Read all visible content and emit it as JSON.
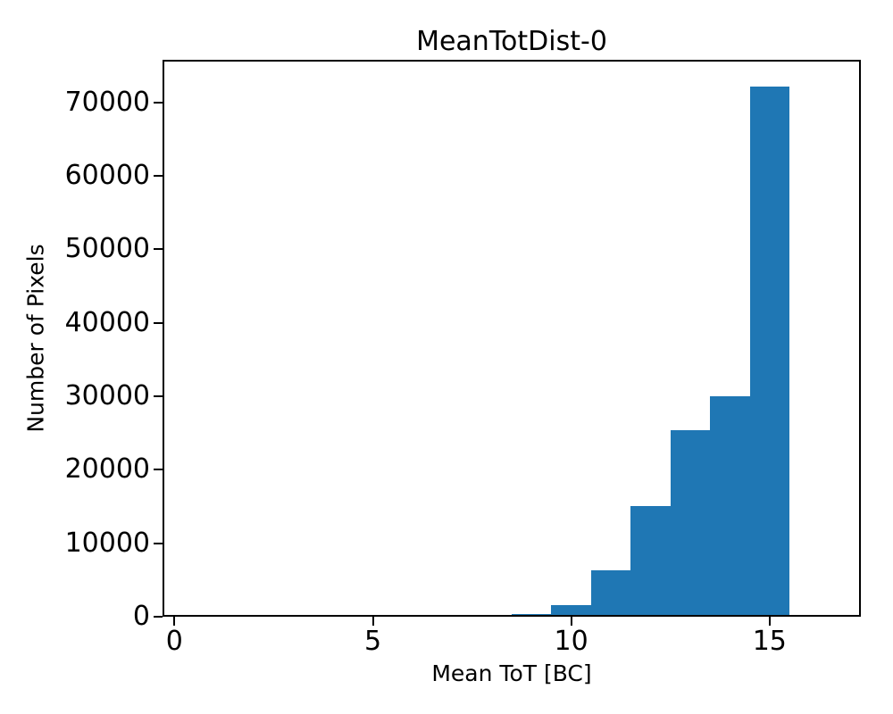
{
  "figure": {
    "title": "MeanTotDist-0",
    "xlabel": "Mean ToT [BC]",
    "ylabel": "Number of Pixels"
  },
  "colors": {
    "bar": "#1f77b4",
    "text": "#000000",
    "spine": "#000000",
    "background": "#ffffff"
  },
  "chart_data": {
    "type": "bar",
    "subtype": "histogram",
    "title": "MeanTotDist-0",
    "xlabel": "Mean ToT [BC]",
    "ylabel": "Number of Pixels",
    "bin_edges": [
      8.5,
      9.5,
      10.5,
      11.5,
      12.5,
      13.5,
      14.5,
      15.5
    ],
    "counts": [
      400,
      1600,
      6300,
      15100,
      25400,
      30000,
      72200
    ],
    "bar_color": "#1f77b4",
    "xticks": {
      "values": [
        0,
        5,
        10,
        15
      ],
      "labels": [
        "0",
        "5",
        "10",
        "15"
      ]
    },
    "yticks": {
      "values": [
        0,
        10000,
        20000,
        30000,
        40000,
        50000,
        60000,
        70000
      ],
      "labels": [
        "0",
        "10000",
        "20000",
        "30000",
        "40000",
        "50000",
        "60000",
        "70000"
      ]
    },
    "xlim": [
      -0.3,
      17.3
    ],
    "ylim": [
      0,
      75810
    ],
    "grid": false,
    "legend": null
  }
}
